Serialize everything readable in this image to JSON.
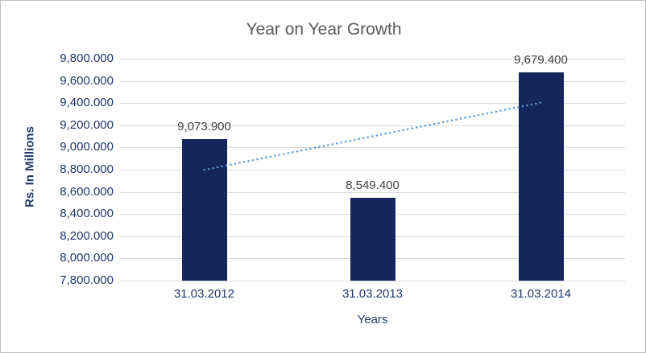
{
  "chart_data": {
    "type": "bar",
    "title": "Year on Year Growth",
    "xlabel": "Years",
    "ylabel": "Rs. In Millions",
    "categories": [
      "31.03.2012",
      "31.03.2013",
      "31.03.2014"
    ],
    "values": [
      9073.9,
      8549.4,
      9679.4
    ],
    "value_labels": [
      "9,073.900",
      "8,549.400",
      "9,679.400"
    ],
    "ylim": [
      7800,
      9800
    ],
    "y_tick_step": 200,
    "y_ticks": [
      9800,
      9600,
      9400,
      9200,
      9000,
      8800,
      8600,
      8400,
      8200,
      8000,
      7800
    ],
    "y_tick_labels": [
      "9,800.000",
      "9,600.000",
      "9,400.000",
      "9,200.000",
      "9,000.000",
      "8,800.000",
      "8,600.000",
      "8,400.000",
      "8,200.000",
      "8,000.000",
      "7,800.000"
    ],
    "grid": true,
    "legend": false,
    "bar_color": "#14265c",
    "trendline": {
      "type": "linear",
      "style": "dotted",
      "color": "#5b9bd5",
      "start_value": 8798,
      "end_value": 9404
    }
  }
}
